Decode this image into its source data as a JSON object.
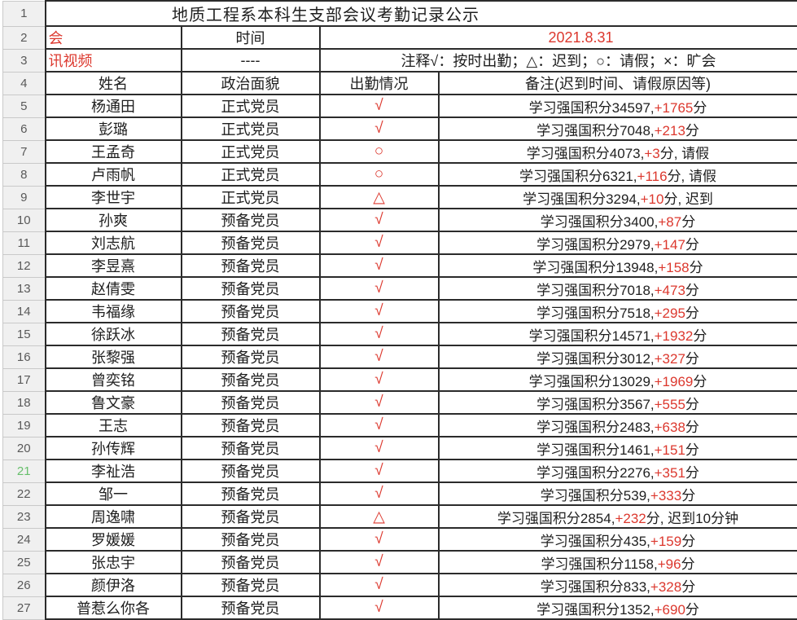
{
  "sheet": {
    "title": "地质工程系本科生支部会议考勤记录公示",
    "title_row_num": "1",
    "row2": {
      "num": "2",
      "b": "会",
      "c": "时间",
      "de": "2021.8.31"
    },
    "row3": {
      "num": "3",
      "b": "讯视频",
      "c": "----",
      "de": "注释√：按时出勤；△：迟到；○：请假；×：旷会"
    },
    "header": {
      "num": "4",
      "name": "姓名",
      "status": "政治面貌",
      "attendance": "出勤情况",
      "remark": "备注(迟到时间、请假原因等)"
    },
    "legend_meaning": {
      "√": "按时出勤",
      "△": "迟到",
      "○": "请假",
      "×": "旷会"
    },
    "colors": {
      "accent_red": "#dc382e",
      "row21_green": "#67bf6b",
      "grid_dark": "#2b2b2b",
      "rowheader_bg": "#f0f0f0"
    },
    "records": [
      {
        "n": "5",
        "name": "杨通田",
        "status": "正式党员",
        "mark": "√",
        "pre": "学习强国积分34597,",
        "red": "+1765",
        "post": "分",
        "green": false
      },
      {
        "n": "6",
        "name": "彭璐",
        "status": "正式党员",
        "mark": "√",
        "pre": "学习强国积分7048,",
        "red": "+213",
        "post": "分",
        "green": false
      },
      {
        "n": "7",
        "name": "王孟奇",
        "status": "正式党员",
        "mark": "○",
        "pre": "学习强国积分4073,",
        "red": "+3",
        "post": "分, 请假",
        "green": false
      },
      {
        "n": "8",
        "name": "卢雨帆",
        "status": "正式党员",
        "mark": "○",
        "pre": "学习强国积分6321,",
        "red": "+116",
        "post": "分, 请假",
        "green": false
      },
      {
        "n": "9",
        "name": "李世宇",
        "status": "正式党员",
        "mark": "△",
        "pre": "学习强国积分3294,",
        "red": "+10",
        "post": "分, 迟到",
        "green": false
      },
      {
        "n": "10",
        "name": "孙爽",
        "status": "预备党员",
        "mark": "√",
        "pre": "学习强国积分3400,",
        "red": "+87",
        "post": "分",
        "green": false
      },
      {
        "n": "11",
        "name": "刘志航",
        "status": "预备党员",
        "mark": "√",
        "pre": "学习强国积分2979,",
        "red": "+147",
        "post": "分",
        "green": false
      },
      {
        "n": "12",
        "name": "李昱熹",
        "status": "预备党员",
        "mark": "√",
        "pre": "学习强国积分13948,",
        "red": "+158",
        "post": "分",
        "green": false
      },
      {
        "n": "13",
        "name": "赵倩雯",
        "status": "预备党员",
        "mark": "√",
        "pre": "学习强国积分7018,",
        "red": "+473",
        "post": "分",
        "green": false
      },
      {
        "n": "14",
        "name": "韦福缘",
        "status": "预备党员",
        "mark": "√",
        "pre": "学习强国积分7518,",
        "red": "+295",
        "post": "分",
        "green": false
      },
      {
        "n": "15",
        "name": "徐跃冰",
        "status": "预备党员",
        "mark": "√",
        "pre": "学习强国积分14571,",
        "red": "+1932",
        "post": "分",
        "green": false
      },
      {
        "n": "16",
        "name": "张黎强",
        "status": "预备党员",
        "mark": "√",
        "pre": "学习强国积分3012,",
        "red": "+327",
        "post": "分",
        "green": false
      },
      {
        "n": "17",
        "name": "曾奕铭",
        "status": "预备党员",
        "mark": "√",
        "pre": "学习强国积分13029,",
        "red": "+1969",
        "post": "分",
        "green": false
      },
      {
        "n": "18",
        "name": "鲁文豪",
        "status": "预备党员",
        "mark": "√",
        "pre": "学习强国积分3567,",
        "red": "+555",
        "post": "分",
        "green": false
      },
      {
        "n": "19",
        "name": "王志",
        "status": "预备党员",
        "mark": "√",
        "pre": "学习强国积分2483,",
        "red": "+638",
        "post": "分",
        "green": false
      },
      {
        "n": "20",
        "name": "孙传辉",
        "status": "预备党员",
        "mark": "√",
        "pre": "学习强国积分1461,",
        "red": "+151",
        "post": "分",
        "green": false
      },
      {
        "n": "21",
        "name": "李祉浩",
        "status": "预备党员",
        "mark": "√",
        "pre": "学习强国积分2276,",
        "red": "+351",
        "post": "分",
        "green": true
      },
      {
        "n": "22",
        "name": "邹一",
        "status": "预备党员",
        "mark": "√",
        "pre": "学习强国积分539,",
        "red": "+333",
        "post": "分",
        "green": false
      },
      {
        "n": "23",
        "name": "周逸啸",
        "status": "预备党员",
        "mark": "△",
        "pre": "学习强国积分2854,",
        "red": "+232",
        "post": "分, 迟到10分钟",
        "green": false
      },
      {
        "n": "24",
        "name": "罗媛媛",
        "status": "预备党员",
        "mark": "√",
        "pre": "学习强国积分435,",
        "red": "+159",
        "post": "分",
        "green": false
      },
      {
        "n": "25",
        "name": "张忠宇",
        "status": "预备党员",
        "mark": "√",
        "pre": "学习强国积分1158,",
        "red": "+96",
        "post": "分",
        "green": false
      },
      {
        "n": "26",
        "name": "颜伊洛",
        "status": "预备党员",
        "mark": "√",
        "pre": "学习强国积分833,",
        "red": "+328",
        "post": "分",
        "green": false
      },
      {
        "n": "27",
        "name": "普惹么你各",
        "status": "预备党员",
        "mark": "√",
        "pre": "学习强国积分1352,",
        "red": "+690",
        "post": "分",
        "green": false
      }
    ]
  }
}
